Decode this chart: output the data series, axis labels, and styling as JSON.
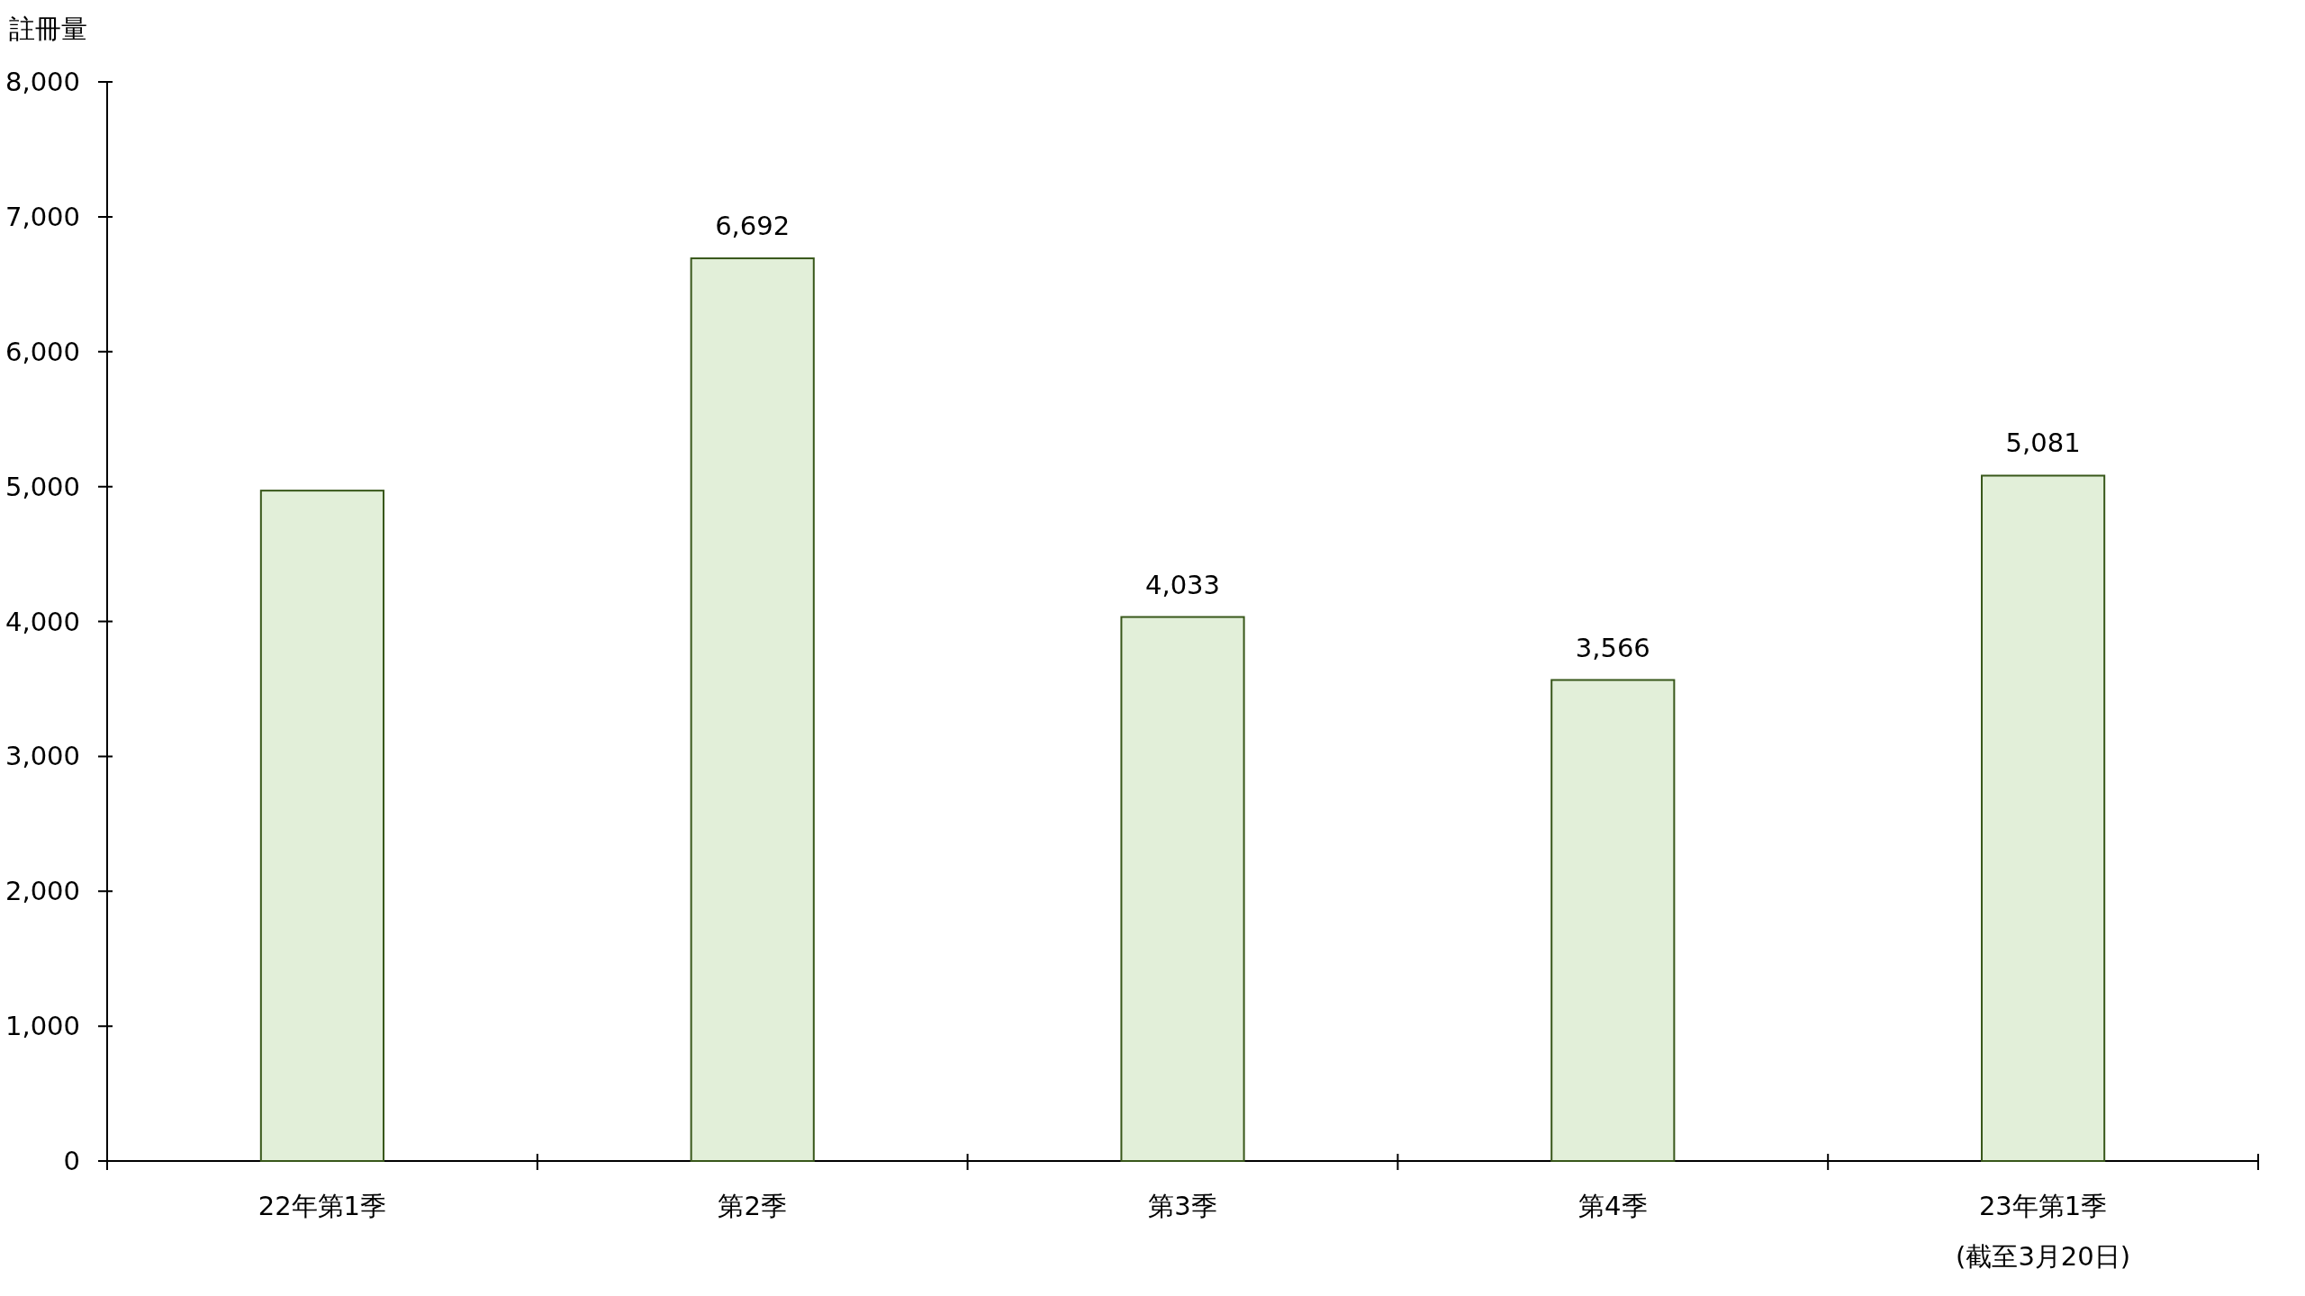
{
  "chart_data": {
    "type": "bar",
    "ylabel": "註冊量",
    "categories": [
      "22年第1季",
      "第2季",
      "第3季",
      "第4季",
      "23年第1季\n(截至3月20日)"
    ],
    "values": [
      4970,
      6692,
      4033,
      3566,
      5081
    ],
    "value_labels": [
      null,
      "6,692",
      "4,033",
      "3,566",
      "5,081"
    ],
    "color": "#e2efd9",
    "ylim": [
      0,
      8000
    ],
    "yticks": [
      {
        "value": 0,
        "label": "0"
      },
      {
        "value": 1000,
        "label": "1,000"
      },
      {
        "value": 2000,
        "label": "2,000"
      },
      {
        "value": 3000,
        "label": "3,000"
      },
      {
        "value": 4000,
        "label": "4,000"
      },
      {
        "value": 5000,
        "label": "5,000"
      },
      {
        "value": 6000,
        "label": "6,000"
      },
      {
        "value": 7000,
        "label": "7,000"
      },
      {
        "value": 8000,
        "label": "8,000"
      }
    ],
    "grid": false
  }
}
